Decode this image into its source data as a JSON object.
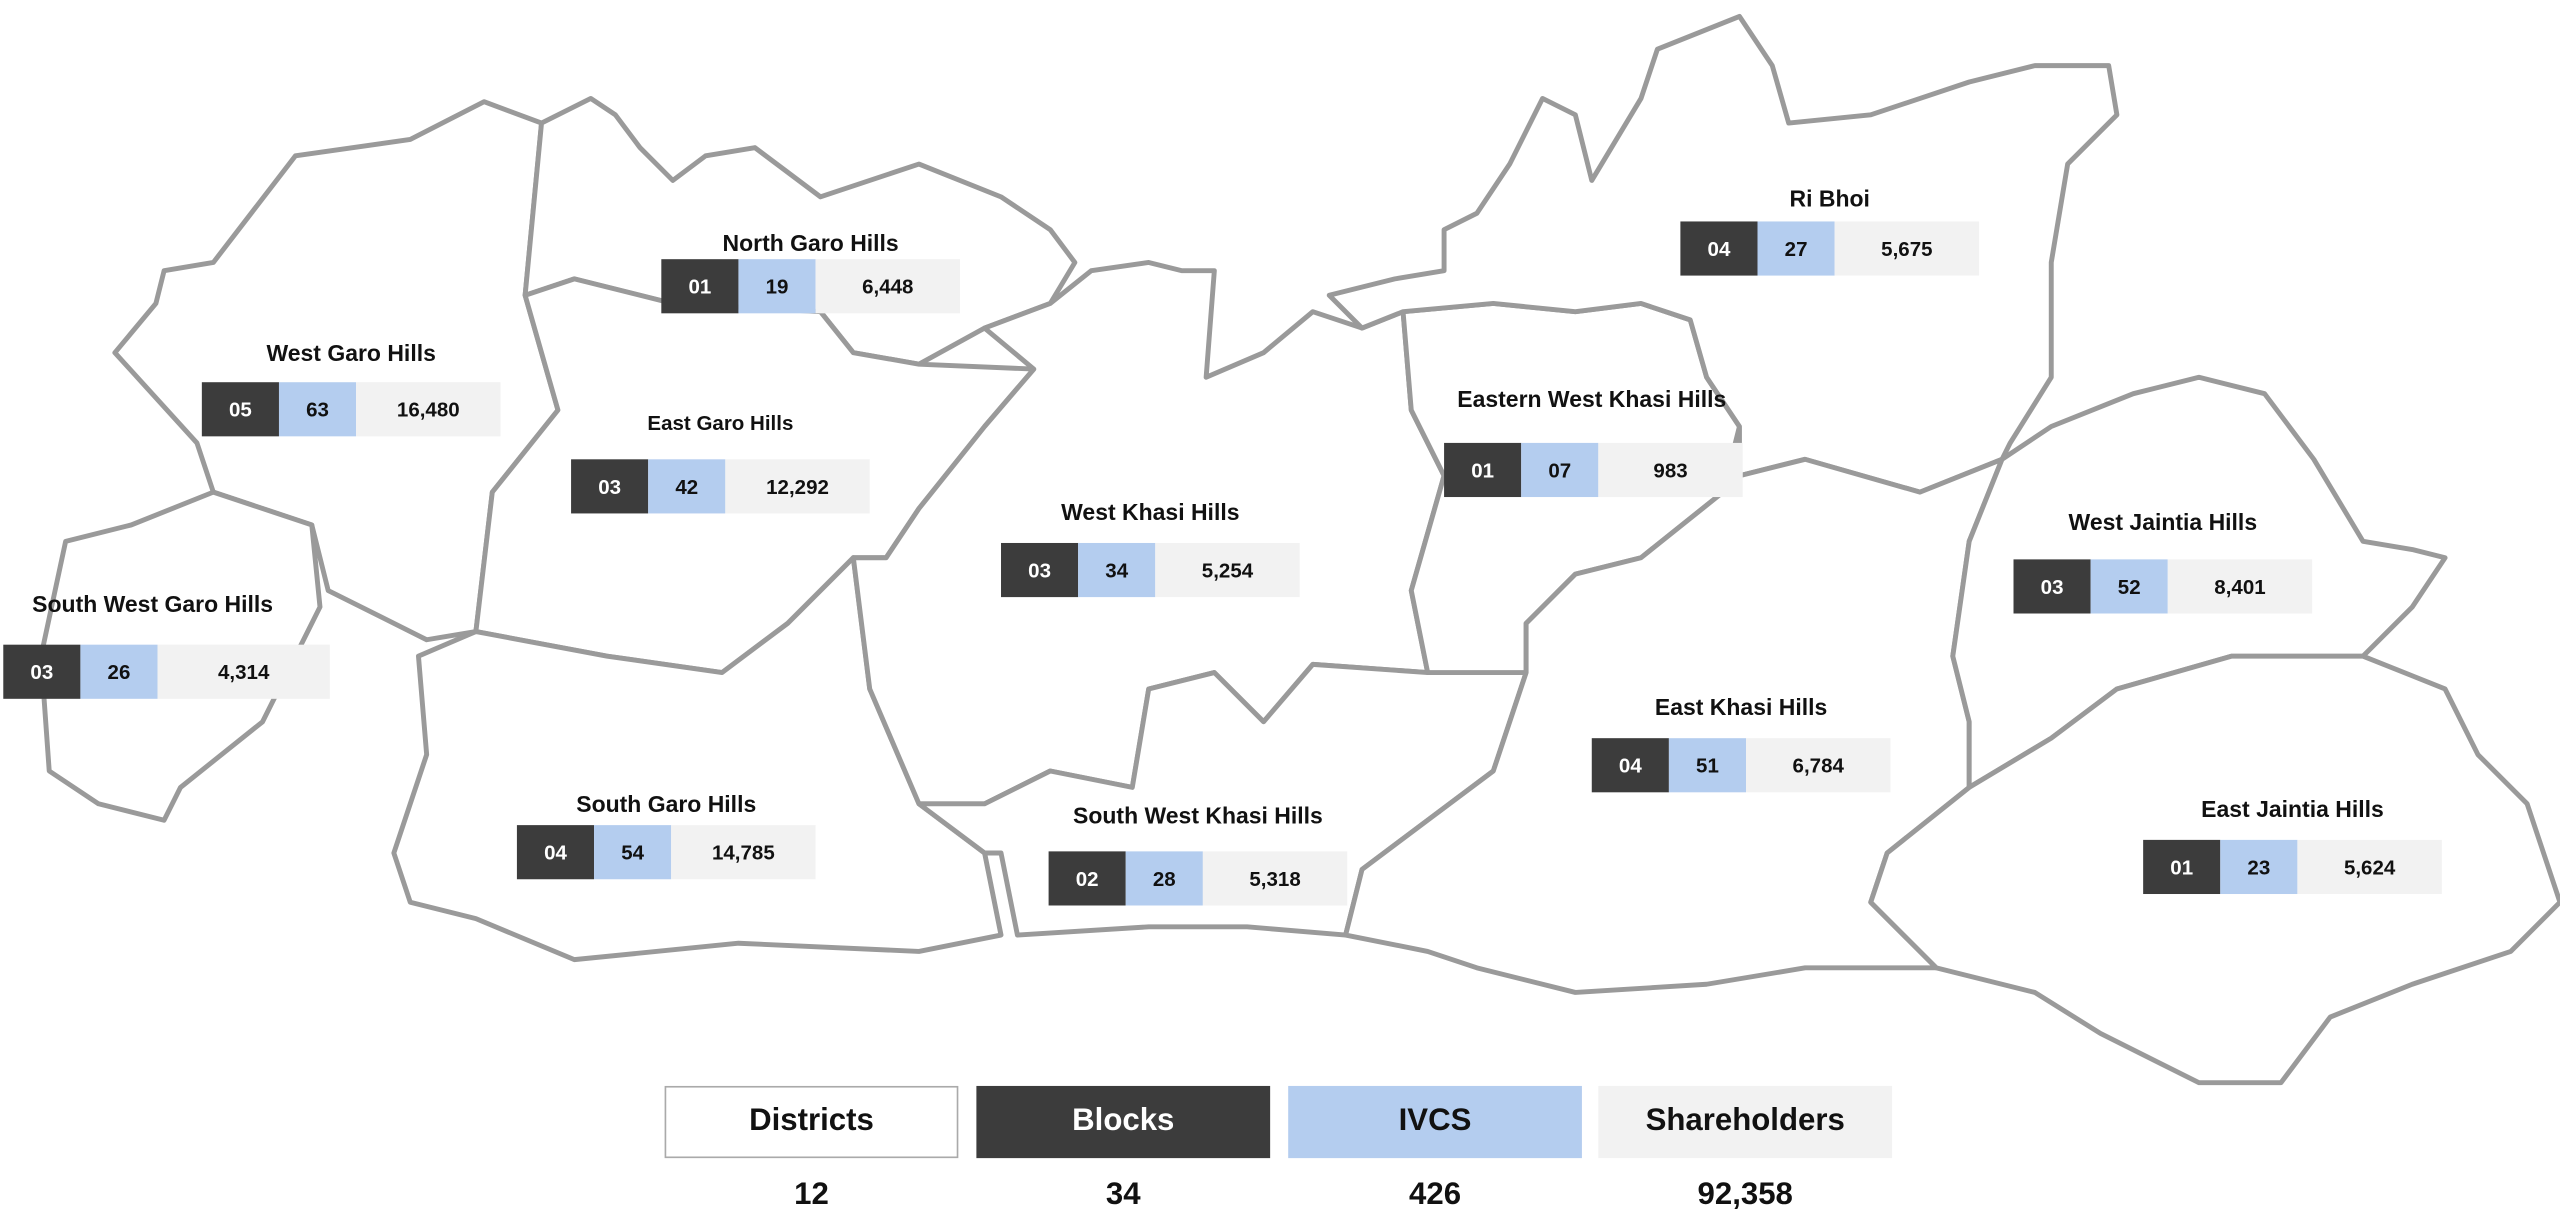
{
  "districts": [
    {
      "name": "North Garo Hills",
      "blocks": "01",
      "ivcs": "19",
      "shareholders": "6,448"
    },
    {
      "name": "West Garo Hills",
      "blocks": "05",
      "ivcs": "63",
      "shareholders": "16,480"
    },
    {
      "name": "East Garo Hills",
      "blocks": "03",
      "ivcs": "42",
      "shareholders": "12,292"
    },
    {
      "name": "South West Garo Hills",
      "blocks": "03",
      "ivcs": "26",
      "shareholders": "4,314"
    },
    {
      "name": "South Garo Hills",
      "blocks": "04",
      "ivcs": "54",
      "shareholders": "14,785"
    },
    {
      "name": "West Khasi Hills",
      "blocks": "03",
      "ivcs": "34",
      "shareholders": "5,254"
    },
    {
      "name": "South West Khasi Hills",
      "blocks": "02",
      "ivcs": "28",
      "shareholders": "5,318"
    },
    {
      "name": "Eastern West Khasi Hills",
      "blocks": "01",
      "ivcs": "07",
      "shareholders": "983"
    },
    {
      "name": "Ri Bhoi",
      "blocks": "04",
      "ivcs": "27",
      "shareholders": "5,675"
    },
    {
      "name": "East Khasi Hills",
      "blocks": "04",
      "ivcs": "51",
      "shareholders": "6,784"
    },
    {
      "name": "West Jaintia Hills",
      "blocks": "03",
      "ivcs": "52",
      "shareholders": "8,401"
    },
    {
      "name": "East Jaintia Hills",
      "blocks": "01",
      "ivcs": "23",
      "shareholders": "5,624"
    }
  ],
  "legend": [
    {
      "label": "Districts",
      "value": "12"
    },
    {
      "label": "Blocks",
      "value": "34"
    },
    {
      "label": "IVCS",
      "value": "426"
    },
    {
      "label": "Shareholders",
      "value": "92,358"
    }
  ]
}
